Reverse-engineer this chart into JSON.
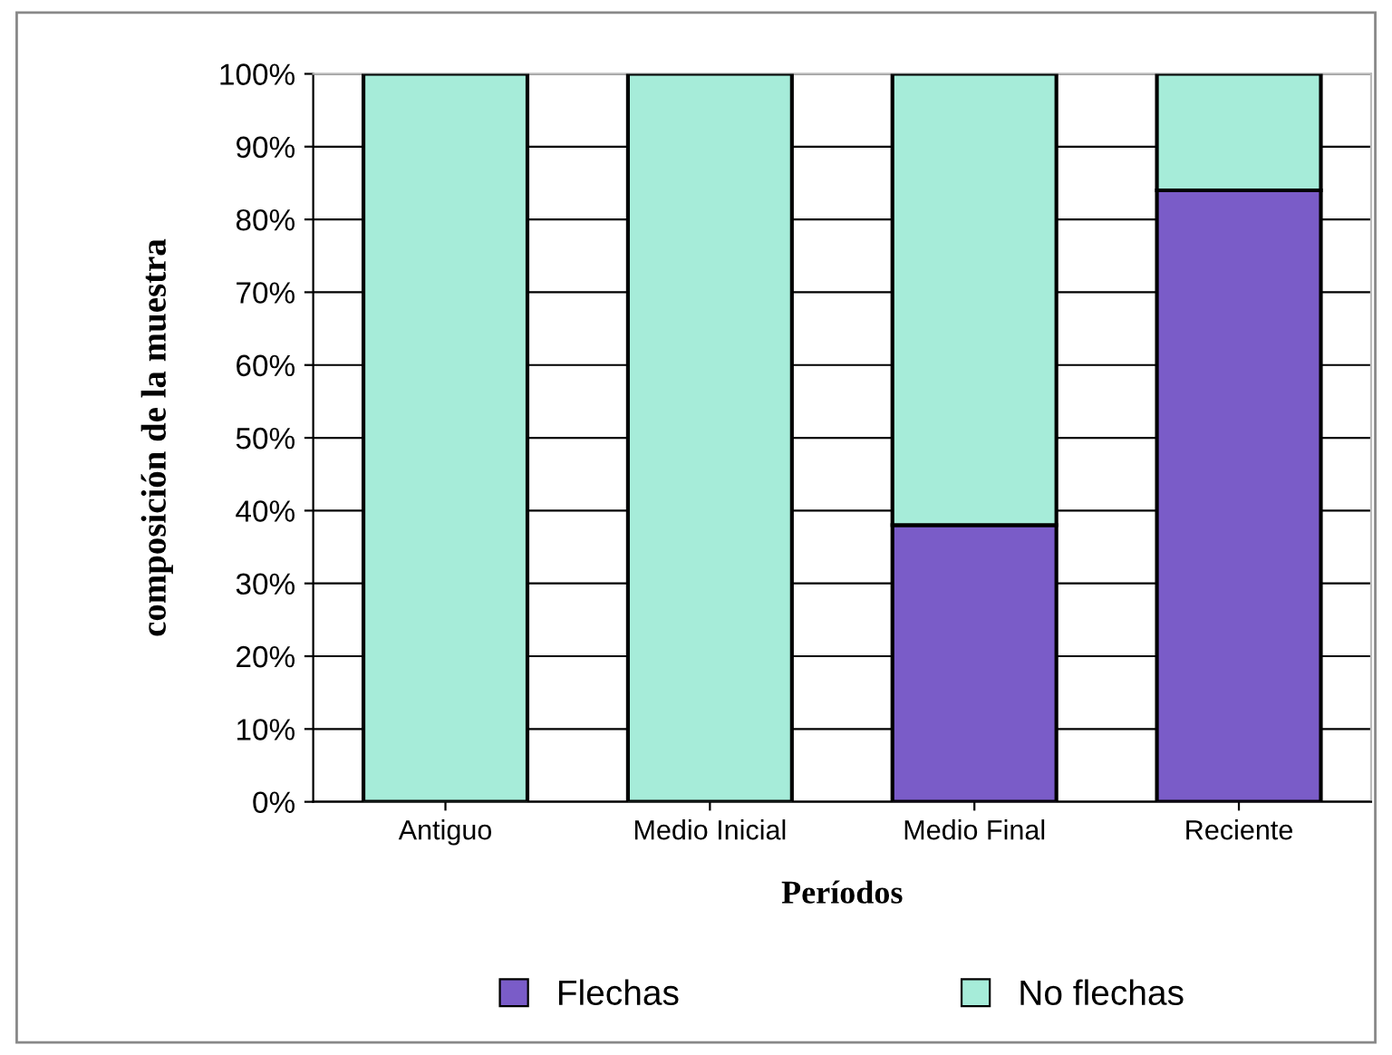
{
  "chart_data": {
    "type": "bar",
    "stacked": true,
    "xlabel": "Períodos",
    "ylabel": "composición de la muestra",
    "categories": [
      "Antiguo",
      "Medio Inicial",
      "Medio Final",
      "Reciente"
    ],
    "series": [
      {
        "name": "Flechas",
        "color": "#7a5cc8",
        "values": [
          0,
          0,
          38,
          84
        ]
      },
      {
        "name": "No flechas",
        "color": "#a6ecd9",
        "values": [
          100,
          100,
          62,
          16
        ]
      }
    ],
    "ylim": [
      0,
      100
    ],
    "yticks": [
      {
        "value": 0,
        "label": "0%"
      },
      {
        "value": 10,
        "label": "10%"
      },
      {
        "value": 20,
        "label": "20%"
      },
      {
        "value": 30,
        "label": "30%"
      },
      {
        "value": 40,
        "label": "40%"
      },
      {
        "value": 50,
        "label": "50%"
      },
      {
        "value": 60,
        "label": "60%"
      },
      {
        "value": 70,
        "label": "70%"
      },
      {
        "value": 80,
        "label": "80%"
      },
      {
        "value": 90,
        "label": "90%"
      },
      {
        "value": 100,
        "label": "100%"
      }
    ],
    "grid": "y",
    "legend": "bottom"
  }
}
